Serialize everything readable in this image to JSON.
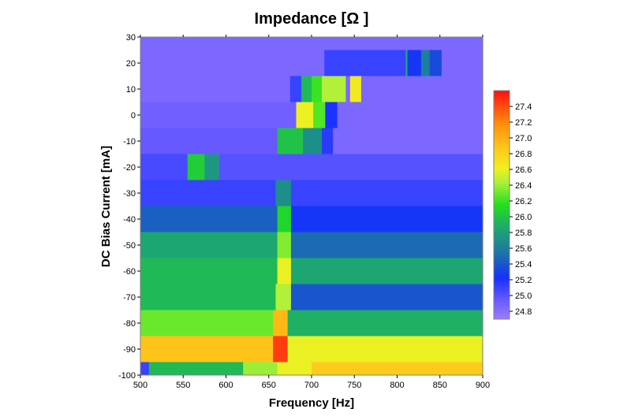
{
  "chart_data": {
    "type": "heatmap",
    "title": "Impedance [Ω ]",
    "xlabel": "Frequency [Hz]",
    "ylabel": "DC Bias Current [mA]",
    "xlim": [
      500,
      900
    ],
    "ylim": [
      -100,
      30
    ],
    "x_ticks": [
      500,
      550,
      600,
      650,
      700,
      750,
      800,
      850,
      900
    ],
    "y_ticks": [
      -100,
      -90,
      -80,
      -70,
      -60,
      -50,
      -40,
      -30,
      -20,
      -10,
      0,
      10,
      20,
      30
    ],
    "colorbar": {
      "range": [
        24.7,
        27.6
      ],
      "ticks": [
        24.8,
        25.0,
        25.2,
        25.4,
        25.6,
        25.8,
        26.0,
        26.2,
        26.4,
        26.6,
        26.8,
        27.0,
        27.2,
        27.4
      ],
      "placement": "right"
    },
    "rows": [
      {
        "bias": 30,
        "segments": [
          [
            500,
            900,
            24.85
          ]
        ]
      },
      {
        "bias": 20,
        "segments": [
          [
            500,
            715,
            24.85
          ],
          [
            715,
            810,
            25.1
          ],
          [
            810,
            812,
            25.9
          ],
          [
            812,
            828,
            25.25
          ],
          [
            828,
            838,
            25.6
          ],
          [
            838,
            852,
            25.35
          ],
          [
            852,
            900,
            24.85
          ]
        ]
      },
      {
        "bias": 10,
        "segments": [
          [
            500,
            675,
            24.85
          ],
          [
            675,
            688,
            25.1
          ],
          [
            688,
            700,
            25.95
          ],
          [
            700,
            712,
            26.2
          ],
          [
            712,
            740,
            26.45
          ],
          [
            740,
            745,
            24.85
          ],
          [
            745,
            758,
            26.65
          ],
          [
            758,
            900,
            24.85
          ]
        ]
      },
      {
        "bias": 0,
        "segments": [
          [
            500,
            682,
            24.9
          ],
          [
            682,
            702,
            26.6
          ],
          [
            702,
            716,
            26.25
          ],
          [
            716,
            730,
            25.2
          ],
          [
            730,
            900,
            24.85
          ]
        ]
      },
      {
        "bias": -10,
        "segments": [
          [
            500,
            660,
            24.95
          ],
          [
            660,
            690,
            26.0
          ],
          [
            690,
            712,
            25.7
          ],
          [
            712,
            725,
            25.15
          ],
          [
            725,
            900,
            24.85
          ]
        ]
      },
      {
        "bias": -20,
        "segments": [
          [
            500,
            555,
            25.05
          ],
          [
            555,
            575,
            26.05
          ],
          [
            575,
            592,
            25.75
          ],
          [
            592,
            900,
            25.0
          ]
        ]
      },
      {
        "bias": -30,
        "segments": [
          [
            500,
            658,
            25.1
          ],
          [
            658,
            676,
            25.7
          ],
          [
            676,
            900,
            25.1
          ]
        ]
      },
      {
        "bias": -40,
        "segments": [
          [
            500,
            660,
            25.45
          ],
          [
            660,
            676,
            26.1
          ],
          [
            676,
            900,
            25.25
          ]
        ]
      },
      {
        "bias": -50,
        "segments": [
          [
            500,
            660,
            25.85
          ],
          [
            660,
            676,
            26.35
          ],
          [
            676,
            900,
            25.5
          ]
        ]
      },
      {
        "bias": -60,
        "segments": [
          [
            500,
            660,
            25.95
          ],
          [
            660,
            676,
            26.6
          ],
          [
            676,
            900,
            25.85
          ]
        ]
      },
      {
        "bias": -70,
        "segments": [
          [
            500,
            658,
            25.95
          ],
          [
            658,
            676,
            26.45
          ],
          [
            676,
            900,
            25.4
          ]
        ]
      },
      {
        "bias": -80,
        "segments": [
          [
            500,
            655,
            26.3
          ],
          [
            655,
            672,
            26.95
          ],
          [
            672,
            900,
            25.9
          ]
        ]
      },
      {
        "bias": -90,
        "segments": [
          [
            500,
            655,
            26.9
          ],
          [
            655,
            672,
            27.45
          ],
          [
            672,
            900,
            26.6
          ]
        ]
      },
      {
        "bias": -100,
        "segments": [
          [
            500,
            510,
            25.1
          ],
          [
            510,
            620,
            25.95
          ],
          [
            620,
            660,
            26.4
          ],
          [
            660,
            700,
            26.6
          ],
          [
            700,
            900,
            26.85
          ]
        ]
      }
    ]
  }
}
